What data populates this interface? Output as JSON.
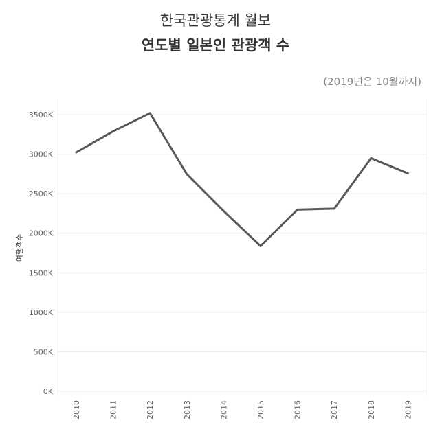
{
  "header": {
    "title": "한국관광통계 월보",
    "subtitle": "연도별 일본인 관광객 수",
    "note": "(2019년은 10월까지)"
  },
  "chart_data": {
    "type": "line",
    "title": "연도별 일본인 관광객 수",
    "ylabel": "여행객수",
    "xlabel": "",
    "categories": [
      "2010",
      "2011",
      "2012",
      "2013",
      "2014",
      "2015",
      "2016",
      "2017",
      "2018",
      "2019"
    ],
    "series": [
      {
        "values": [
          3023,
          3289,
          3519,
          2747,
          2280,
          1838,
          2298,
          2311,
          2949,
          2757
        ]
      }
    ],
    "ylim": [
      0,
      3500
    ],
    "yticks": [
      0,
      500,
      1000,
      1500,
      2000,
      2500,
      3000,
      3500
    ],
    "ytick_labels": [
      "0K",
      "500K",
      "1000K",
      "1500K",
      "2000K",
      "2500K",
      "3000K",
      "3500K"
    ],
    "grid": true,
    "line_color": "#595959"
  }
}
